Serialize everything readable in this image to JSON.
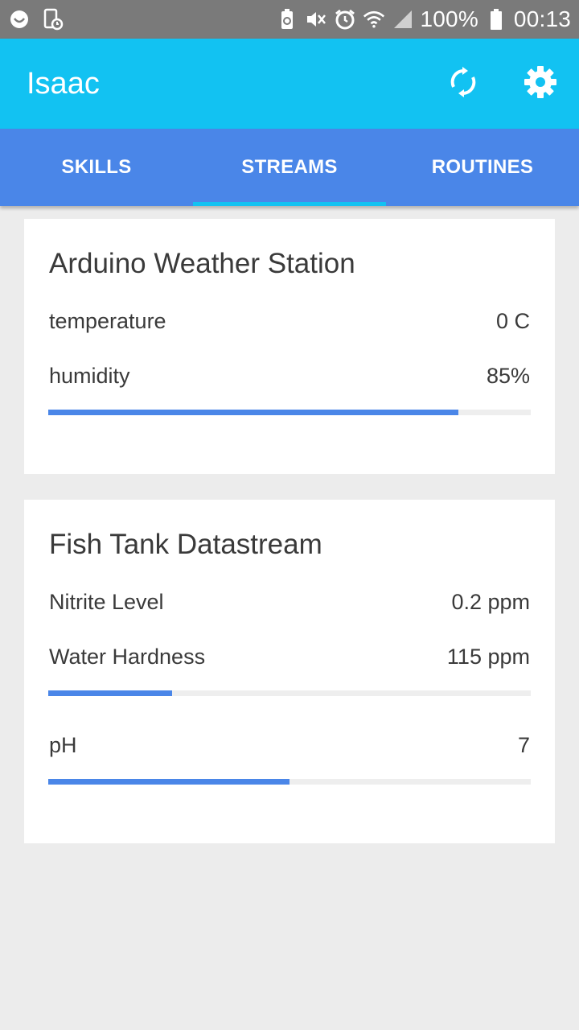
{
  "status_bar": {
    "battery": "100%",
    "time": "00:13",
    "icons": [
      "smiley-icon",
      "screenshot-icon",
      "battery-saver-icon",
      "mute-vibrate-icon",
      "alarm-icon",
      "wifi-icon",
      "signal-icon",
      "battery-icon"
    ]
  },
  "appbar": {
    "title": "Isaac",
    "background": "#12c2f2",
    "actions": [
      "refresh-icon",
      "settings-icon"
    ]
  },
  "tabs": {
    "background": "#4a86e8",
    "indicator_color": "#12c2f2",
    "items": [
      {
        "label": "SKILLS",
        "selected": false
      },
      {
        "label": "STREAMS",
        "selected": true
      },
      {
        "label": "ROUTINES",
        "selected": false
      }
    ]
  },
  "streams": [
    {
      "title": "Arduino Weather Station",
      "rows": [
        {
          "label": "temperature",
          "value": "0 C"
        },
        {
          "label": "humidity",
          "value": "85%",
          "progress": 0.85
        }
      ]
    },
    {
      "title": "Fish Tank Datastream",
      "rows": [
        {
          "label": "Nitrite Level",
          "value": "0.2 ppm"
        },
        {
          "label": "Water Hardness",
          "value": "115 ppm",
          "progress": 0.257
        },
        {
          "label": "pH",
          "value": "7",
          "progress": 0.5
        }
      ]
    }
  ],
  "colors": {
    "accent": "#4a86e8",
    "progress_track": "#eeeeee",
    "background": "#ececec"
  }
}
